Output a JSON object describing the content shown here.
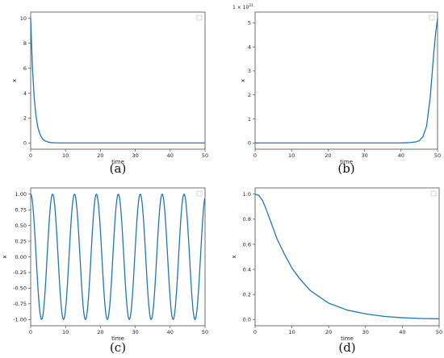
{
  "chart_data": [
    {
      "type": "line",
      "caption": "(a)",
      "xlabel": "time",
      "ylabel": "x",
      "xlim": [
        0,
        50
      ],
      "ylim": [
        -0.5,
        10.5
      ],
      "xticks": [
        0,
        10,
        20,
        30,
        40,
        50
      ],
      "yticks": [
        0,
        2,
        4,
        6,
        8,
        10
      ],
      "ytick_labels": [
        "0",
        "2",
        "4",
        "6",
        "8",
        "10"
      ],
      "legend": "top-right (empty)",
      "series": [
        {
          "x": [
            0,
            0.5,
            1,
            1.5,
            2,
            2.5,
            3,
            3.5,
            4,
            5,
            6,
            7,
            8,
            10,
            15,
            20,
            30,
            40,
            50
          ],
          "y": [
            10,
            6.07,
            3.68,
            2.23,
            1.35,
            0.82,
            0.5,
            0.3,
            0.18,
            0.07,
            0.02,
            0.01,
            0.0,
            0,
            0,
            0,
            0,
            0,
            0
          ]
        }
      ],
      "color": "#1f77b4"
    },
    {
      "type": "line",
      "caption": "(b)",
      "xlabel": "time",
      "ylabel": "x",
      "multiplier": "1e21",
      "multiplier_label": "1",
      "multiplier_exp": "21",
      "xlim": [
        0,
        50
      ],
      "ylim": [
        -0.26,
        5.45
      ],
      "xticks": [
        0,
        10,
        20,
        30,
        40,
        50
      ],
      "yticks": [
        0,
        1,
        2,
        3,
        4,
        5
      ],
      "ytick_labels": [
        "0",
        "1",
        "2",
        "3",
        "4",
        "5"
      ],
      "legend": "top-right (empty)",
      "series": [
        {
          "x": [
            0,
            10,
            20,
            30,
            40,
            42,
            44,
            45,
            46,
            47,
            48,
            49,
            49.5,
            50
          ],
          "y": [
            0,
            0,
            0,
            0,
            0.002,
            0.01,
            0.04,
            0.09,
            0.26,
            0.7,
            1.9,
            3.8,
            4.6,
            5.18
          ]
        }
      ],
      "color": "#1f77b4"
    },
    {
      "type": "line",
      "caption": "(c)",
      "xlabel": "time",
      "ylabel": "x",
      "xlim": [
        0,
        50
      ],
      "ylim": [
        -1.1,
        1.1
      ],
      "xticks": [
        0,
        10,
        20,
        30,
        40,
        50
      ],
      "yticks": [
        -1.0,
        -0.75,
        -0.5,
        -0.25,
        0.0,
        0.25,
        0.5,
        0.75,
        1.0
      ],
      "ytick_labels": [
        "-1.00",
        "-0.75",
        "-0.50",
        "-0.25",
        "0.00",
        "0.25",
        "0.50",
        "0.75",
        "1.00"
      ],
      "legend": "top-right (empty)",
      "function": "cos(t)",
      "series": [
        {
          "x": [
            0,
            50
          ],
          "y": [
            1.0,
            0.965
          ]
        }
      ],
      "color": "#1f77b4"
    },
    {
      "type": "line",
      "caption": "(d)",
      "xlabel": "time",
      "ylabel": "x",
      "xlim": [
        0,
        50
      ],
      "ylim": [
        -0.05,
        1.05
      ],
      "xticks": [
        0,
        10,
        20,
        30,
        40,
        50
      ],
      "yticks": [
        0.0,
        0.2,
        0.4,
        0.6,
        0.8,
        1.0
      ],
      "ytick_labels": [
        "0.0",
        "0.2",
        "0.4",
        "0.6",
        "0.8",
        "1.0"
      ],
      "legend": "top-right (empty)",
      "series": [
        {
          "x": [
            0,
            1,
            2,
            3,
            4,
            5,
            6,
            8,
            10,
            12,
            15,
            20,
            25,
            30,
            35,
            40,
            45,
            50
          ],
          "y": [
            1.0,
            0.99,
            0.95,
            0.88,
            0.8,
            0.72,
            0.64,
            0.52,
            0.41,
            0.33,
            0.23,
            0.13,
            0.075,
            0.045,
            0.025,
            0.014,
            0.008,
            0.005
          ]
        }
      ],
      "color": "#1f77b4"
    }
  ]
}
